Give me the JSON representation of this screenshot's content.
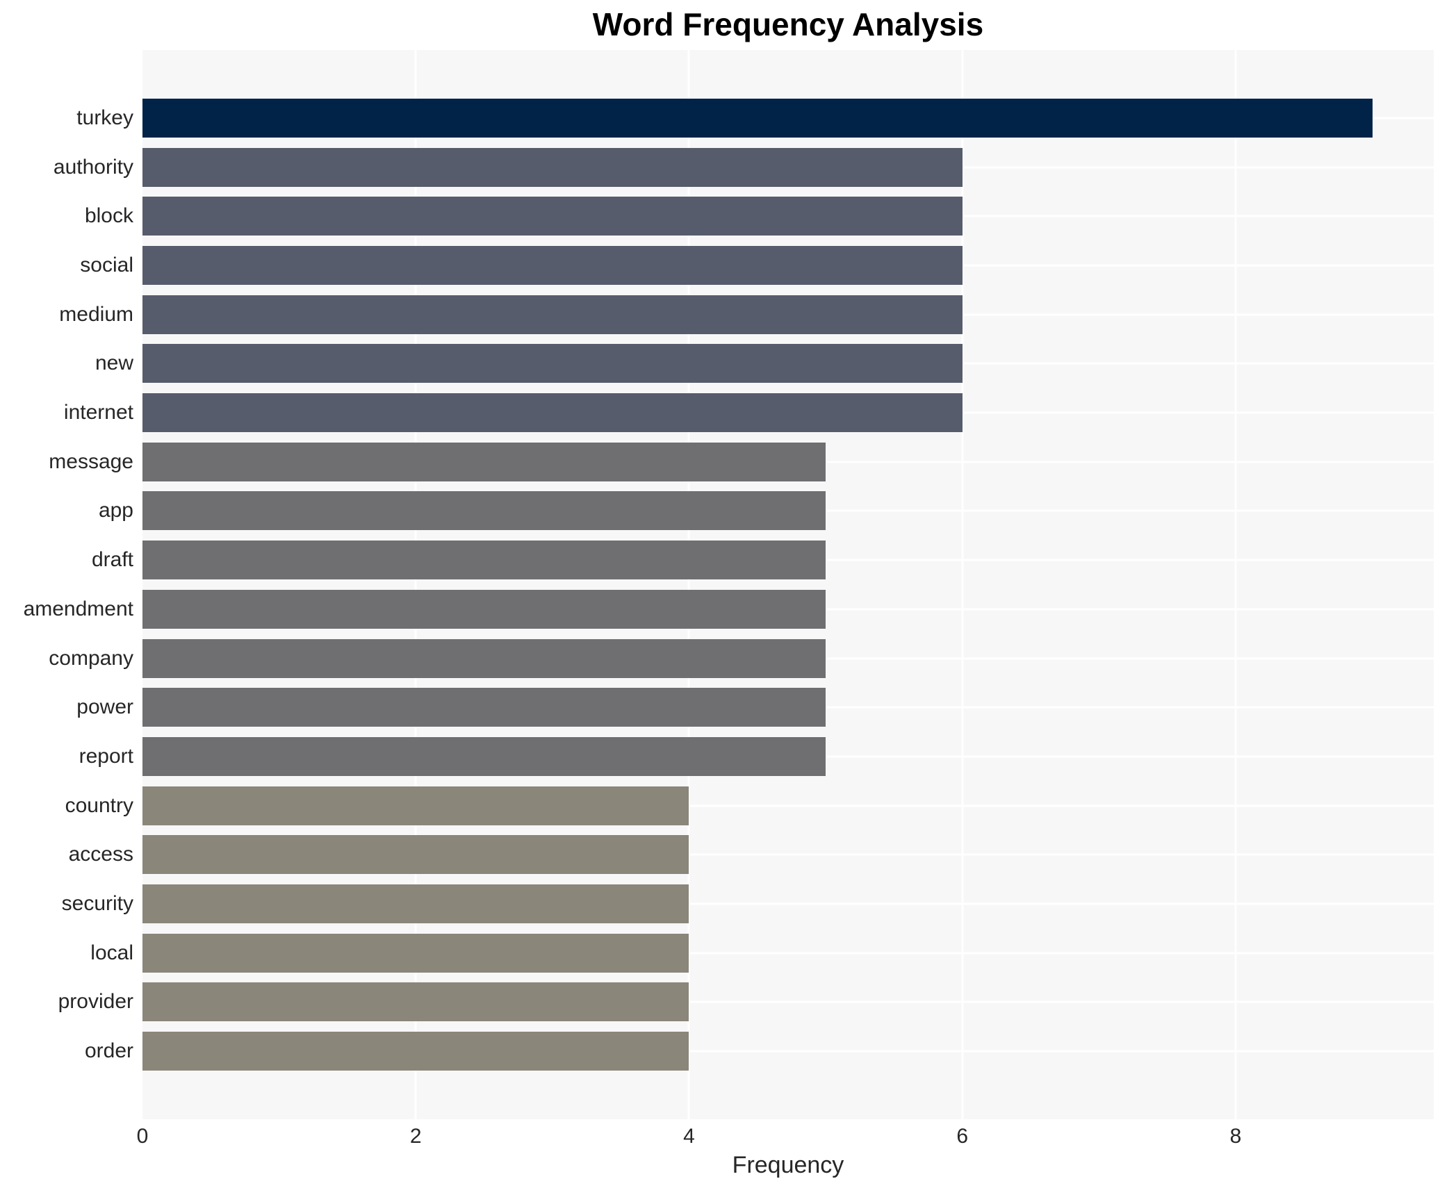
{
  "colors": {
    "page_background": "#ffffff",
    "plot_background": "#f7f7f8",
    "gridline": "#ffffff",
    "title_text": "#000000",
    "axis_text": "#262626"
  },
  "chart_data": {
    "type": "bar",
    "orientation": "horizontal",
    "title": "Word Frequency Analysis",
    "xlabel": "Frequency",
    "ylabel": "",
    "xlim": [
      0,
      9.45
    ],
    "xticks": [
      0,
      2,
      4,
      6,
      8
    ],
    "grid": "on",
    "legend": "none",
    "categories": [
      "turkey",
      "authority",
      "block",
      "social",
      "medium",
      "new",
      "internet",
      "message",
      "app",
      "draft",
      "amendment",
      "company",
      "power",
      "report",
      "country",
      "access",
      "security",
      "local",
      "provider",
      "order"
    ],
    "values": [
      9,
      6,
      6,
      6,
      6,
      6,
      6,
      5,
      5,
      5,
      5,
      5,
      5,
      5,
      4,
      4,
      4,
      4,
      4,
      4
    ],
    "bar_colors": [
      "#002347",
      "#565c6b",
      "#565c6b",
      "#565c6b",
      "#565c6b",
      "#565c6b",
      "#565c6b",
      "#6f6f71",
      "#6f6f71",
      "#6f6f71",
      "#6f6f71",
      "#6f6f71",
      "#6f6f71",
      "#6f6f71",
      "#8a867a",
      "#8a867a",
      "#8a867a",
      "#8a867a",
      "#8a867a",
      "#8a867a"
    ]
  }
}
